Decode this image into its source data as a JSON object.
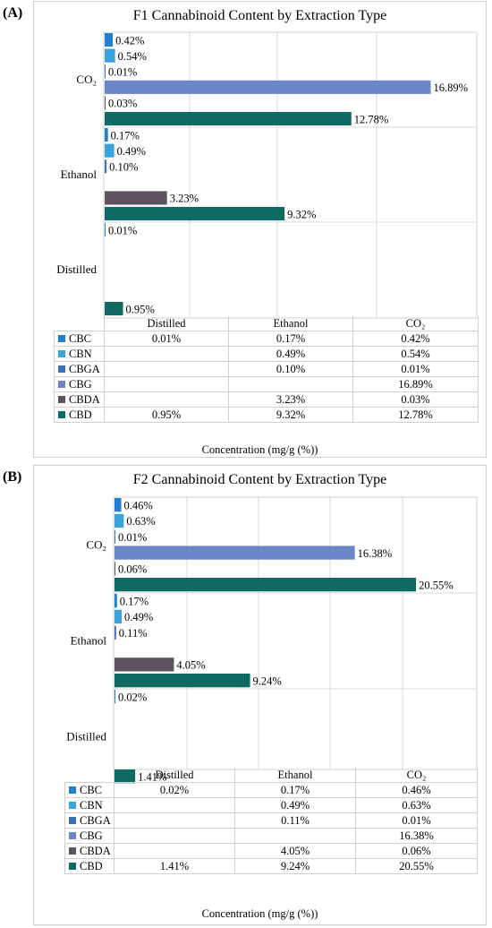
{
  "colors": {
    "CBC": "#1f7fd0",
    "CBN": "#3aa3dd",
    "CBGA": "#3d71b5",
    "CBG": "#6b86c6",
    "CBDA": "#5d5360",
    "CBD": "#0f6a64",
    "grid": "#d9d9d9",
    "border": "#d0d0d0"
  },
  "chart_data": [
    {
      "panel_label": "(A)",
      "type": "bar",
      "orientation": "horizontal",
      "title": "F1 Cannabinoid Content by Extraction Type",
      "xlabel": "Concentration (mg/g (%))",
      "xlim": [
        0,
        20
      ],
      "grid": true,
      "groups": [
        "CO₂",
        "Ethanol",
        "Distilled"
      ],
      "table_columns": [
        "Distilled",
        "Ethanol",
        "CO₂"
      ],
      "series": [
        {
          "name": "CBC",
          "values": {
            "CO₂": 0.42,
            "Ethanol": 0.17,
            "Distilled": 0.01
          },
          "labels": {
            "CO₂": "0.42%",
            "Ethanol": "0.17%",
            "Distilled": "0.01%"
          }
        },
        {
          "name": "CBN",
          "values": {
            "CO₂": 0.54,
            "Ethanol": 0.49,
            "Distilled": null
          },
          "labels": {
            "CO₂": "0.54%",
            "Ethanol": "0.49%",
            "Distilled": ""
          }
        },
        {
          "name": "CBGA",
          "values": {
            "CO₂": 0.01,
            "Ethanol": 0.1,
            "Distilled": null
          },
          "labels": {
            "CO₂": "0.01%",
            "Ethanol": "0.10%",
            "Distilled": ""
          }
        },
        {
          "name": "CBG",
          "values": {
            "CO₂": 16.89,
            "Ethanol": null,
            "Distilled": null
          },
          "labels": {
            "CO₂": "16.89%",
            "Ethanol": "",
            "Distilled": ""
          }
        },
        {
          "name": "CBDA",
          "values": {
            "CO₂": 0.03,
            "Ethanol": 3.23,
            "Distilled": null
          },
          "labels": {
            "CO₂": "0.03%",
            "Ethanol": "3.23%",
            "Distilled": ""
          }
        },
        {
          "name": "CBD",
          "values": {
            "CO₂": 12.78,
            "Ethanol": 9.32,
            "Distilled": 0.95
          },
          "labels": {
            "CO₂": "12.78%",
            "Ethanol": "9.32%",
            "Distilled": "0.95%"
          }
        }
      ]
    },
    {
      "panel_label": "(B)",
      "type": "bar",
      "orientation": "horizontal",
      "title": "F2 Cannabinoid Content by Extraction Type",
      "xlabel": "Concentration (mg/g (%))",
      "xlim": [
        0,
        20
      ],
      "grid": true,
      "groups": [
        "CO₂",
        "Ethanol",
        "Distilled"
      ],
      "table_columns": [
        "Distilled",
        "Ethanol",
        "CO₂"
      ],
      "series": [
        {
          "name": "CBC",
          "values": {
            "CO₂": 0.46,
            "Ethanol": 0.17,
            "Distilled": 0.02
          },
          "labels": {
            "CO₂": "0.46%",
            "Ethanol": "0.17%",
            "Distilled": "0.02%"
          }
        },
        {
          "name": "CBN",
          "values": {
            "CO₂": 0.63,
            "Ethanol": 0.49,
            "Distilled": null
          },
          "labels": {
            "CO₂": "0.63%",
            "Ethanol": "0.49%",
            "Distilled": ""
          }
        },
        {
          "name": "CBGA",
          "values": {
            "CO₂": 0.01,
            "Ethanol": 0.11,
            "Distilled": null
          },
          "labels": {
            "CO₂": "0.01%",
            "Ethanol": "0.11%",
            "Distilled": ""
          }
        },
        {
          "name": "CBG",
          "values": {
            "CO₂": 16.38,
            "Ethanol": null,
            "Distilled": null
          },
          "labels": {
            "CO₂": "16.38%",
            "Ethanol": "",
            "Distilled": ""
          }
        },
        {
          "name": "CBDA",
          "values": {
            "CO₂": 0.06,
            "Ethanol": 4.05,
            "Distilled": null
          },
          "labels": {
            "CO₂": "0.06%",
            "Ethanol": "4.05%",
            "Distilled": ""
          }
        },
        {
          "name": "CBD",
          "values": {
            "CO₂": 20.55,
            "Ethanol": 9.24,
            "Distilled": 1.41
          },
          "labels": {
            "CO₂": "20.55%",
            "Ethanol": "9.24%",
            "Distilled": "1.41%"
          }
        }
      ]
    }
  ]
}
